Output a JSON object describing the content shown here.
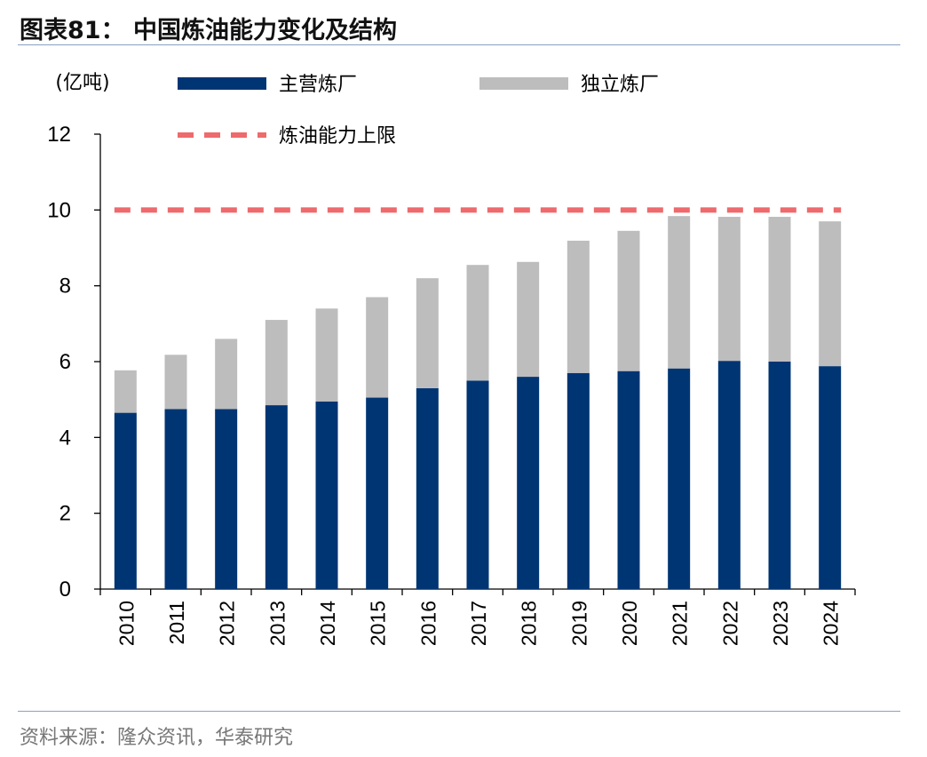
{
  "header": {
    "title": "图表81： 中国炼油能力变化及结构"
  },
  "footer": {
    "source": "资料来源：隆众资讯，华泰研究"
  },
  "colors": {
    "main_refinery": "#003574",
    "independent_refinery": "#bdbdbd",
    "capacity_limit": "#ee6a6c",
    "rule": "#8aa0c0"
  },
  "chart_data": {
    "type": "bar",
    "stacked": true,
    "title": "",
    "ylabel": "(亿吨)",
    "xlabel": "",
    "ylim": [
      0,
      12
    ],
    "yticks": [
      0,
      2,
      4,
      6,
      8,
      10,
      12
    ],
    "categories": [
      "2010",
      "2011",
      "2012",
      "2013",
      "2014",
      "2015",
      "2016",
      "2017",
      "2018",
      "2019",
      "2020",
      "2021",
      "2022",
      "2023",
      "2024"
    ],
    "series": [
      {
        "name": "主营炼厂",
        "values": [
          4.65,
          4.75,
          4.75,
          4.85,
          4.95,
          5.05,
          5.3,
          5.5,
          5.6,
          5.7,
          5.75,
          5.82,
          6.02,
          6.0,
          5.88
        ]
      },
      {
        "name": "独立炼厂",
        "values": [
          1.12,
          1.43,
          1.85,
          2.25,
          2.45,
          2.65,
          2.9,
          3.05,
          3.03,
          3.49,
          3.7,
          4.02,
          3.8,
          3.82,
          3.82
        ]
      }
    ],
    "reference_lines": [
      {
        "name": "炼油能力上限",
        "value": 10,
        "style": "dashed"
      }
    ],
    "legend_position": "top"
  }
}
